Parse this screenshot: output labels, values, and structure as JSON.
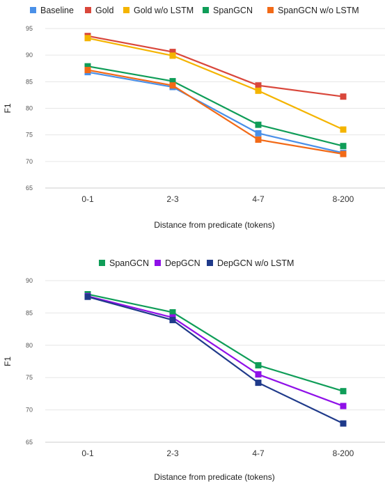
{
  "chart_data": [
    {
      "type": "line",
      "title": "",
      "xlabel": "Distance from predicate (tokens)",
      "ylabel": "F1",
      "categories": [
        "0-1",
        "2-3",
        "4-7",
        "8-200"
      ],
      "ylim": [
        65,
        95
      ],
      "yticks": [
        65,
        70,
        75,
        80,
        85,
        90,
        95
      ],
      "grid": true,
      "legend_position": "top",
      "series": [
        {
          "name": "Baseline",
          "color": "#4a90e8",
          "values": [
            86.8,
            84.0,
            75.3,
            71.6
          ]
        },
        {
          "name": "Gold",
          "color": "#d9473b",
          "values": [
            93.6,
            90.6,
            84.3,
            82.2
          ]
        },
        {
          "name": "Gold w/o LSTM",
          "color": "#f4b400",
          "values": [
            93.2,
            89.9,
            83.3,
            76.0
          ]
        },
        {
          "name": "SpanGCN",
          "color": "#0f9d58",
          "values": [
            87.9,
            85.1,
            76.9,
            72.9
          ]
        },
        {
          "name": "SpanGCN w/o LSTM",
          "color": "#f26a17",
          "values": [
            87.2,
            84.3,
            74.1,
            71.4
          ]
        }
      ]
    },
    {
      "type": "line",
      "title": "",
      "xlabel": "Distance from predicate (tokens)",
      "ylabel": "F1",
      "categories": [
        "0-1",
        "2-3",
        "4-7",
        "8-200"
      ],
      "ylim": [
        65,
        90
      ],
      "yticks": [
        65,
        70,
        75,
        80,
        85,
        90
      ],
      "grid": true,
      "legend_position": "top",
      "series": [
        {
          "name": "SpanGCN",
          "color": "#0f9d58",
          "values": [
            87.9,
            85.1,
            76.9,
            72.9
          ]
        },
        {
          "name": "DepGCN",
          "color": "#8f10e8",
          "values": [
            87.6,
            84.3,
            75.5,
            70.6
          ]
        },
        {
          "name": "DepGCN w/o LSTM",
          "color": "#1f3a8a",
          "values": [
            87.5,
            83.9,
            74.2,
            67.9
          ]
        }
      ]
    }
  ]
}
